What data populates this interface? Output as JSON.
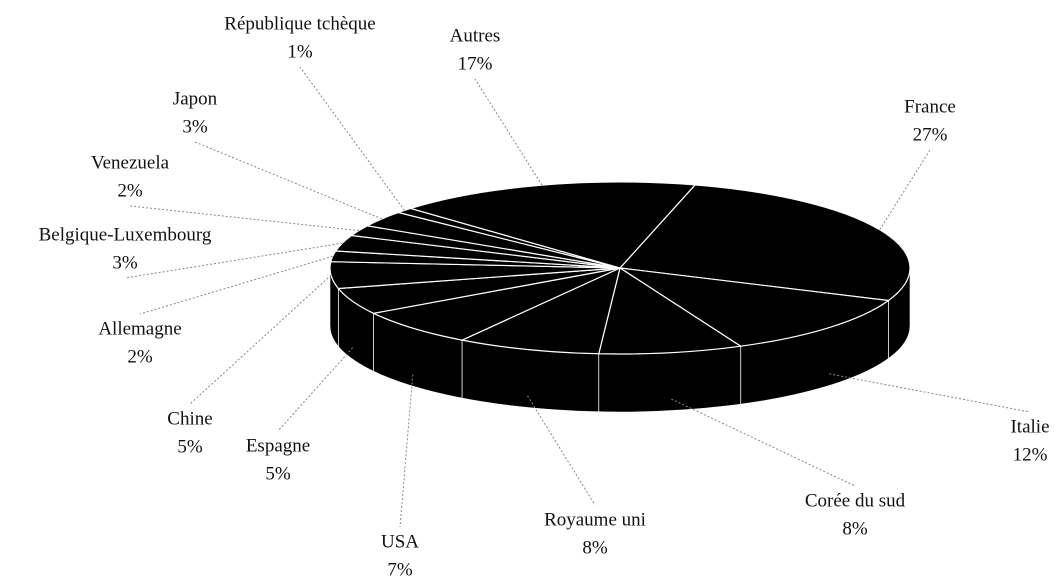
{
  "chart_data": {
    "type": "pie",
    "categories": [
      "France",
      "Italie",
      "Corée du sud",
      "Royaume uni",
      "USA",
      "Espagne",
      "Chine",
      "Allemagne",
      "Belgique-Luxembourg",
      "Venezuela",
      "Japon",
      "République tchèque",
      "Autres"
    ],
    "values": [
      27,
      12,
      8,
      8,
      7,
      5,
      5,
      2,
      3,
      2,
      3,
      1,
      17
    ],
    "value_labels": [
      "27%",
      "12%",
      "8%",
      "8%",
      "7%",
      "5%",
      "5%",
      "2%",
      "3%",
      "2%",
      "3%",
      "1%",
      "17%"
    ],
    "color": "#000000"
  }
}
